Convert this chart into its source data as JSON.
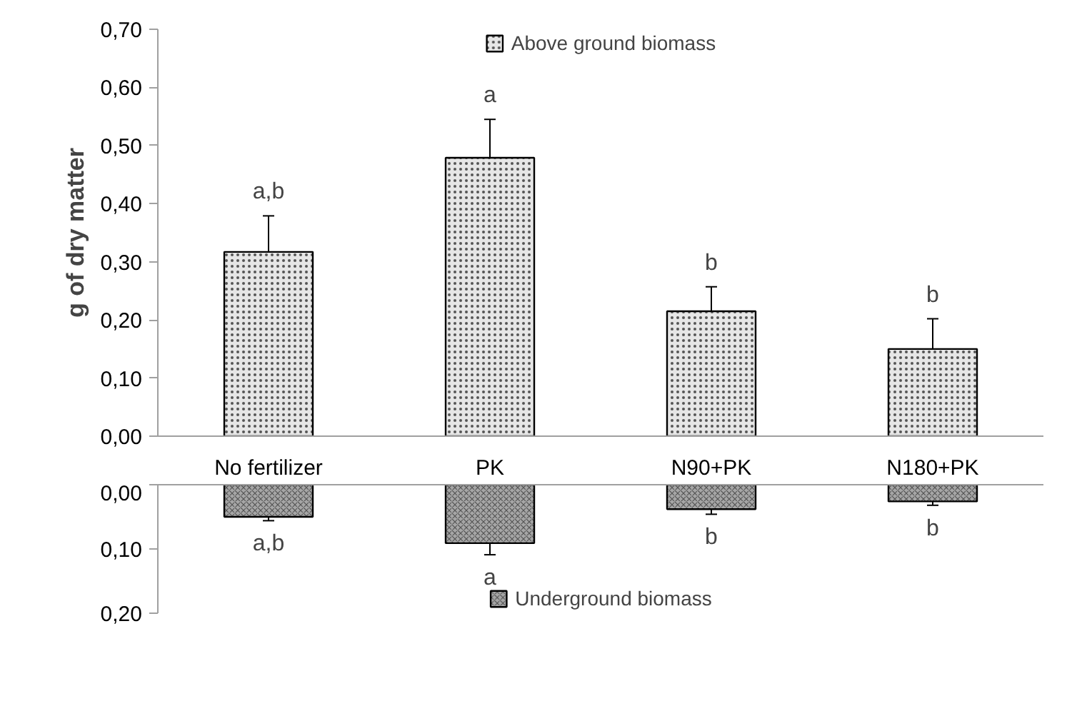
{
  "chart_data": [
    {
      "type": "bar",
      "ylabel": "g of dry matter",
      "categories": [
        "No fertilizer",
        "PK",
        "N90+PK",
        "N180+PK"
      ],
      "series": [
        {
          "name": "Above ground biomass",
          "color": "#e6e6e6",
          "values": [
            0.317,
            0.479,
            0.215,
            0.15
          ],
          "errors": [
            0.062,
            0.066,
            0.042,
            0.052
          ]
        }
      ],
      "ylim": [
        0,
        0.7
      ],
      "yticks": [
        {
          "value": 0,
          "label": "0,00"
        },
        {
          "value": 0.1,
          "label": "0,10"
        },
        {
          "value": 0.2,
          "label": "0,20"
        },
        {
          "value": 0.3,
          "label": "0,30"
        },
        {
          "value": 0.4,
          "label": "0,40"
        },
        {
          "value": 0.5,
          "label": "0,50"
        },
        {
          "value": 0.6,
          "label": "0,60"
        },
        {
          "value": 0.7,
          "label": "0,70"
        }
      ],
      "annotations": [
        {
          "text": "a,b",
          "x": "No fertilizer",
          "y": 0.379
        },
        {
          "text": "a",
          "x": "PK",
          "y": 0.545
        },
        {
          "text": "b",
          "x": "N90+PK",
          "y": 0.257
        },
        {
          "text": "b",
          "x": "N180+PK",
          "y": 0.202
        }
      ],
      "legend": "top",
      "grid": false
    },
    {
      "type": "bar",
      "categories": [
        "No fertilizer",
        "PK",
        "N90+PK",
        "N180+PK"
      ],
      "series": [
        {
          "name": "Underground biomass",
          "color": "#a6a6a6",
          "values": [
            0.05,
            0.091,
            0.038,
            0.026
          ],
          "errors": [
            0.006,
            0.018,
            0.008,
            0.006
          ]
        }
      ],
      "ylim": [
        0.2,
        0
      ],
      "yticks": [
        {
          "value": 0,
          "label": "0,00"
        },
        {
          "value": 0.1,
          "label": "0,10"
        },
        {
          "value": 0.2,
          "label": "0,20"
        }
      ],
      "annotations": [
        {
          "text": "a,b",
          "x": "No fertilizer",
          "y": 0.056
        },
        {
          "text": "a",
          "x": "PK",
          "y": 0.109
        },
        {
          "text": "b",
          "x": "N90+PK",
          "y": 0.046
        },
        {
          "text": "b",
          "x": "N180+PK",
          "y": 0.032
        }
      ],
      "legend": "bottom",
      "tick_labels": "y",
      "grid": false
    }
  ]
}
